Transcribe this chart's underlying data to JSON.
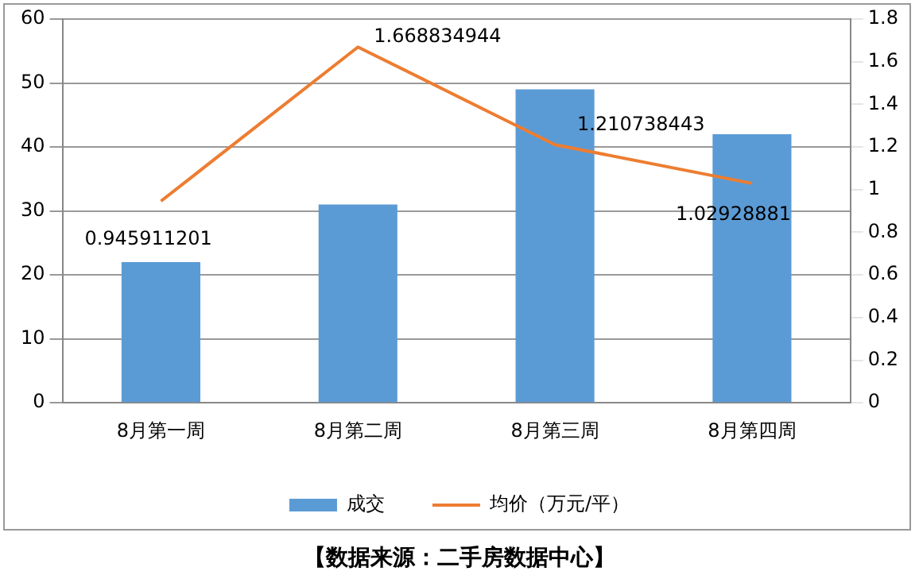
{
  "chart_data": {
    "type": "bar",
    "categories": [
      "8月第一周",
      "8月第二周",
      "8月第三周",
      "8月第四周"
    ],
    "series": [
      {
        "name": "成交",
        "color": "#5b9bd5",
        "values": [
          22,
          31,
          49,
          42
        ]
      },
      {
        "name": "均价（万元/平）",
        "type": "line",
        "axis": "y2",
        "color": "#ed7d31",
        "marker": "none",
        "values": [
          0.945911201,
          1.668834944,
          1.210738443,
          1.02928881
        ],
        "value_labels": [
          "0.945911201",
          "1.668834944",
          "1.210738443",
          "1.02928881"
        ]
      }
    ],
    "ylim": [
      0,
      60
    ],
    "yticks": [
      0,
      10,
      20,
      30,
      40,
      50,
      60
    ],
    "y2lim": [
      0,
      1.8
    ],
    "y2ticks": [
      0,
      0.2,
      0.4,
      0.6,
      0.8,
      1,
      1.2,
      1.4,
      1.6,
      1.8
    ],
    "grid": "y",
    "legend": "bottom",
    "annotations": [
      "【数据来源：二手房数据中心】"
    ]
  }
}
